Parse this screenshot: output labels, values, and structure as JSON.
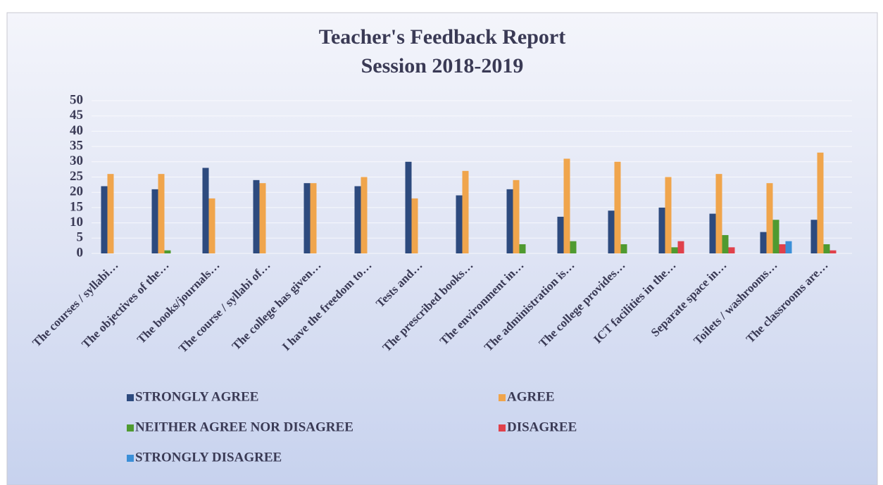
{
  "chart_data": {
    "type": "bar",
    "title": "Teacher's Feedback Report",
    "subtitle": "Session 2018-2019",
    "categories": [
      "The courses / syllabi…",
      "The objectives of the…",
      "The books/journals…",
      "The course / syllabi of…",
      "The college has given…",
      "I have the freedom to…",
      "Tests and…",
      "The prescribed books…",
      "The environment in…",
      "The administration is…",
      "The college provides…",
      "ICT facilities in the…",
      "Separate space in…",
      "Toilets / washrooms…",
      "The classrooms are…"
    ],
    "series": [
      {
        "name": "STRONGLY AGREE",
        "color": "#2d4a7e",
        "values": [
          22,
          21,
          28,
          24,
          23,
          22,
          30,
          19,
          21,
          12,
          14,
          15,
          13,
          7,
          11
        ]
      },
      {
        "name": "AGREE",
        "color": "#f0a54c",
        "values": [
          26,
          26,
          18,
          23,
          23,
          25,
          18,
          27,
          24,
          31,
          30,
          25,
          26,
          23,
          33
        ]
      },
      {
        "name": "NEITHER AGREE NOR DISAGREE",
        "color": "#4f9a30",
        "values": [
          0,
          1,
          0,
          0,
          0,
          0,
          0,
          0,
          3,
          4,
          3,
          2,
          6,
          11,
          3
        ]
      },
      {
        "name": "DISAGREE",
        "color": "#e0414b",
        "values": [
          0,
          0,
          0,
          0,
          0,
          0,
          0,
          0,
          0,
          0,
          0,
          4,
          2,
          3,
          1
        ]
      },
      {
        "name": "STRONGLY DISAGREE",
        "color": "#3b8fd8",
        "values": [
          0,
          0,
          0,
          0,
          0,
          0,
          0,
          0,
          0,
          0,
          0,
          0,
          0,
          4,
          0
        ]
      }
    ],
    "ylim": [
      0,
      50
    ],
    "yticks": [
      0,
      5,
      10,
      15,
      20,
      25,
      30,
      35,
      40,
      45,
      50
    ],
    "grid": true
  }
}
